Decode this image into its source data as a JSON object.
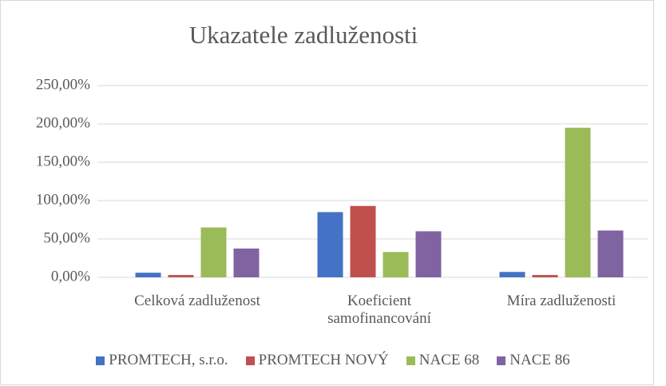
{
  "chart_data": {
    "type": "bar",
    "title": "Ukazatele zadluženosti",
    "categories": [
      "Celková zadluženost",
      "Koeficient samofinancování",
      "Míra zadluženosti"
    ],
    "series": [
      {
        "name": "PROMTECH, s.r.o.",
        "color": "#4472c4",
        "values": [
          6,
          85,
          7
        ]
      },
      {
        "name": "PROMTECH NOVÝ",
        "color": "#c0504d",
        "values": [
          3,
          93,
          3
        ]
      },
      {
        "name": "NACE 68",
        "color": "#9bbb59",
        "values": [
          65,
          33,
          195
        ]
      },
      {
        "name": "NACE 86",
        "color": "#8064a2",
        "values": [
          37.5,
          60,
          61
        ]
      }
    ],
    "ylim": [
      0,
      250
    ],
    "yticks": [
      {
        "value": 0,
        "label": "0,00%"
      },
      {
        "value": 50,
        "label": "50,00%"
      },
      {
        "value": 100,
        "label": "100,00%"
      },
      {
        "value": 150,
        "label": "150,00%"
      },
      {
        "value": 200,
        "label": "200,00%"
      },
      {
        "value": 250,
        "label": "250,00%"
      }
    ],
    "grid": true,
    "legend": "bottom"
  }
}
